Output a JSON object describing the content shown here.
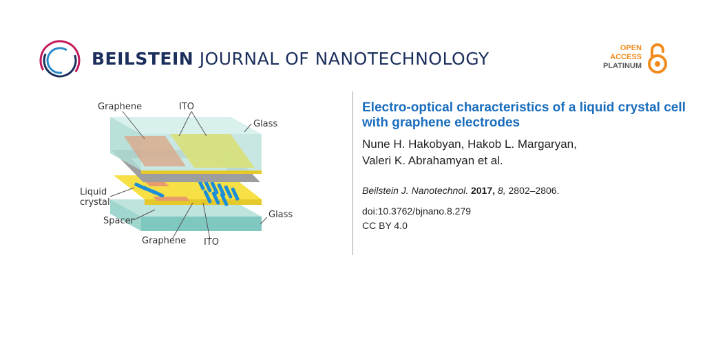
{
  "header": {
    "journal_name_bold": "BEILSTEIN",
    "journal_name_rest": "JOURNAL OF NANOTECHNOLOGY",
    "open_access": [
      "OPEN",
      "ACCESS",
      "PLATINUM"
    ]
  },
  "figure": {
    "labels": {
      "graphene_top": "Graphene",
      "ito_top": "ITO",
      "glass_top": "Glass",
      "liquid": "Liquid",
      "crystal": "crystal",
      "spacer": "Spacer",
      "glass_bottom": "Glass",
      "graphene_bottom": "Graphene",
      "ito_bottom": "ITO"
    }
  },
  "article": {
    "title": "Electro-optical characteristics of a liquid crystal cell with graphene electrodes",
    "authors_line1": "Nune H. Hakobyan, Hakob L. Margaryan,",
    "authors_line2": "Valeri K. Abrahamyan et al.",
    "journal_abbrev": "Beilstein J. Nanotechnol.",
    "year": "2017,",
    "volume": "8,",
    "pages": "2802–2806.",
    "doi": "doi:10.3762/bjnano.8.279",
    "license": "CC BY 4.0"
  },
  "colors": {
    "brand_navy": "#1c2f5c",
    "brand_blue": "#1a6dbd",
    "oa_orange": "#f08c1e"
  }
}
